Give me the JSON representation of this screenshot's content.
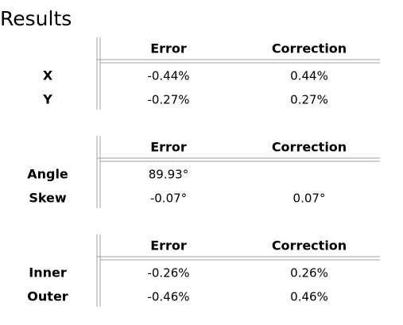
{
  "title": "Results",
  "tables": [
    {
      "header": [
        "Error",
        "Correction"
      ],
      "rows": [
        {
          "label": "X",
          "cells": [
            "-0.44%",
            "0.44%"
          ]
        },
        {
          "label": "Y",
          "cells": [
            "-0.27%",
            "0.27%"
          ]
        }
      ]
    },
    {
      "header": [
        "Error",
        "Correction"
      ],
      "rows": [
        {
          "label": "Angle",
          "cells": [
            "89.93°",
            null
          ]
        },
        {
          "label": "Skew",
          "cells": [
            "-0.07°",
            "0.07°"
          ]
        }
      ]
    },
    {
      "header": [
        "Error",
        "Correction"
      ],
      "rows": [
        {
          "label": "Inner",
          "cells": [
            "-0.26%",
            "0.26%"
          ]
        },
        {
          "label": "Outer",
          "cells": [
            "-0.46%",
            "0.46%"
          ]
        }
      ]
    }
  ]
}
